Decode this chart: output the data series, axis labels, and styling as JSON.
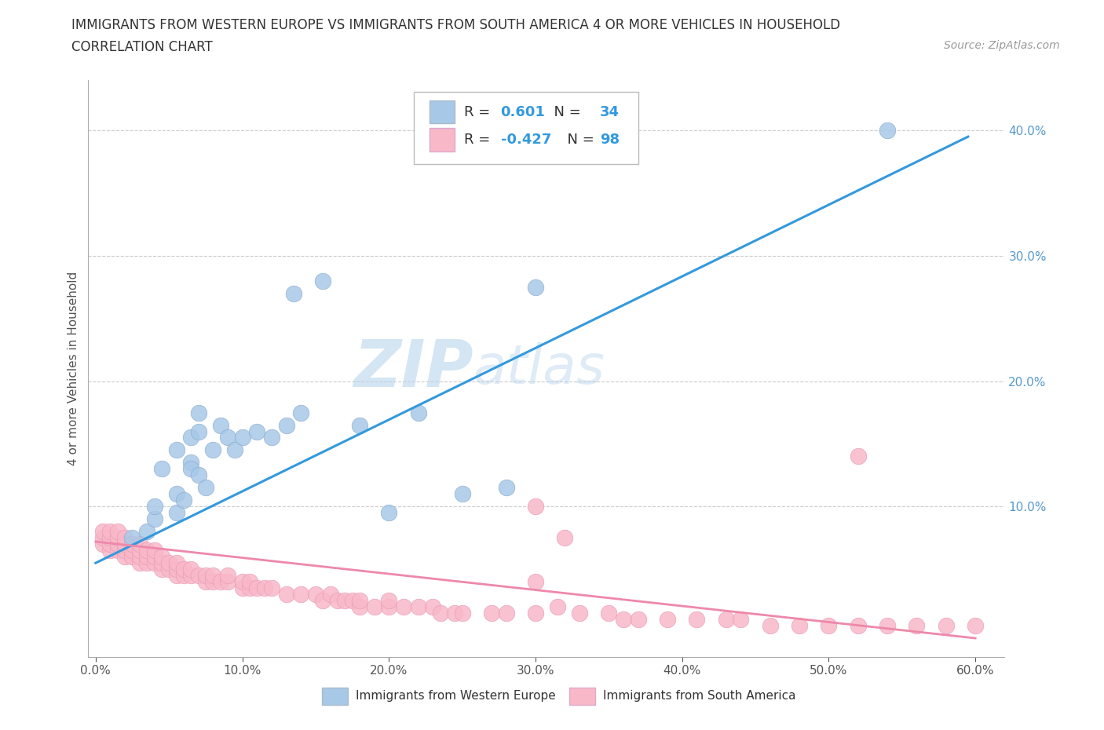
{
  "title_line1": "IMMIGRANTS FROM WESTERN EUROPE VS IMMIGRANTS FROM SOUTH AMERICA 4 OR MORE VEHICLES IN HOUSEHOLD",
  "title_line2": "CORRELATION CHART",
  "source_text": "Source: ZipAtlas.com",
  "ylabel": "4 or more Vehicles in Household",
  "xlabel_blue": "Immigrants from Western Europe",
  "xlabel_pink": "Immigrants from South America",
  "watermark_zip": "ZIP",
  "watermark_atlas": "atlas",
  "blue_R": "0.601",
  "blue_N": "34",
  "pink_R": "-0.427",
  "pink_N": "98",
  "blue_color": "#a8c8e8",
  "pink_color": "#f8b8c8",
  "blue_line_color": "#3399dd",
  "pink_line_color": "#ee88aa",
  "right_tick_color": "#5599cc",
  "xlim": [
    -0.005,
    0.62
  ],
  "ylim": [
    -0.02,
    0.44
  ],
  "xticks": [
    0.0,
    0.1,
    0.2,
    0.3,
    0.4,
    0.5,
    0.6
  ],
  "yticks_right": [
    0.1,
    0.2,
    0.3,
    0.4
  ],
  "title_fontsize": 12,
  "subtitle_fontsize": 12,
  "source_fontsize": 10,
  "axis_label_fontsize": 11,
  "tick_fontsize": 11,
  "legend_fontsize": 13,
  "watermark_fontsize_zip": 60,
  "watermark_fontsize_atlas": 50,
  "background_color": "#ffffff",
  "grid_color": "#cccccc",
  "blue_scatter_x": [
    0.135,
    0.155,
    0.07,
    0.065,
    0.07,
    0.065,
    0.025,
    0.035,
    0.04,
    0.04,
    0.045,
    0.055,
    0.055,
    0.055,
    0.06,
    0.065,
    0.07,
    0.075,
    0.08,
    0.085,
    0.09,
    0.095,
    0.1,
    0.11,
    0.12,
    0.13,
    0.14,
    0.18,
    0.2,
    0.22,
    0.25,
    0.28,
    0.3,
    0.54
  ],
  "blue_scatter_y": [
    0.27,
    0.28,
    0.175,
    0.155,
    0.16,
    0.135,
    0.075,
    0.08,
    0.09,
    0.1,
    0.13,
    0.095,
    0.11,
    0.145,
    0.105,
    0.13,
    0.125,
    0.115,
    0.145,
    0.165,
    0.155,
    0.145,
    0.155,
    0.16,
    0.155,
    0.165,
    0.175,
    0.165,
    0.095,
    0.175,
    0.11,
    0.115,
    0.275,
    0.4
  ],
  "blue_line_x": [
    0.0,
    0.595
  ],
  "blue_line_y": [
    0.055,
    0.395
  ],
  "pink_scatter_x": [
    0.005,
    0.005,
    0.005,
    0.01,
    0.01,
    0.01,
    0.01,
    0.015,
    0.015,
    0.015,
    0.015,
    0.02,
    0.02,
    0.02,
    0.02,
    0.025,
    0.025,
    0.025,
    0.03,
    0.03,
    0.03,
    0.03,
    0.035,
    0.035,
    0.035,
    0.04,
    0.04,
    0.04,
    0.045,
    0.045,
    0.045,
    0.05,
    0.05,
    0.055,
    0.055,
    0.055,
    0.06,
    0.06,
    0.065,
    0.065,
    0.07,
    0.075,
    0.075,
    0.08,
    0.08,
    0.085,
    0.09,
    0.09,
    0.1,
    0.1,
    0.105,
    0.105,
    0.11,
    0.115,
    0.12,
    0.13,
    0.14,
    0.15,
    0.155,
    0.16,
    0.165,
    0.17,
    0.175,
    0.18,
    0.18,
    0.19,
    0.2,
    0.2,
    0.21,
    0.22,
    0.23,
    0.235,
    0.245,
    0.25,
    0.27,
    0.28,
    0.3,
    0.3,
    0.315,
    0.33,
    0.35,
    0.36,
    0.37,
    0.39,
    0.41,
    0.43,
    0.44,
    0.46,
    0.48,
    0.5,
    0.52,
    0.54,
    0.56,
    0.58,
    0.6,
    0.3,
    0.32,
    0.52
  ],
  "pink_scatter_y": [
    0.07,
    0.075,
    0.08,
    0.065,
    0.07,
    0.075,
    0.08,
    0.065,
    0.07,
    0.075,
    0.08,
    0.06,
    0.065,
    0.07,
    0.075,
    0.06,
    0.065,
    0.07,
    0.055,
    0.06,
    0.065,
    0.07,
    0.055,
    0.06,
    0.065,
    0.055,
    0.06,
    0.065,
    0.05,
    0.055,
    0.06,
    0.05,
    0.055,
    0.045,
    0.05,
    0.055,
    0.045,
    0.05,
    0.045,
    0.05,
    0.045,
    0.04,
    0.045,
    0.04,
    0.045,
    0.04,
    0.04,
    0.045,
    0.035,
    0.04,
    0.035,
    0.04,
    0.035,
    0.035,
    0.035,
    0.03,
    0.03,
    0.03,
    0.025,
    0.03,
    0.025,
    0.025,
    0.025,
    0.02,
    0.025,
    0.02,
    0.02,
    0.025,
    0.02,
    0.02,
    0.02,
    0.015,
    0.015,
    0.015,
    0.015,
    0.015,
    0.015,
    0.04,
    0.02,
    0.015,
    0.015,
    0.01,
    0.01,
    0.01,
    0.01,
    0.01,
    0.01,
    0.005,
    0.005,
    0.005,
    0.005,
    0.005,
    0.005,
    0.005,
    0.005,
    0.1,
    0.075,
    0.14
  ],
  "pink_line_x": [
    0.0,
    0.6
  ],
  "pink_line_y": [
    0.072,
    -0.005
  ]
}
